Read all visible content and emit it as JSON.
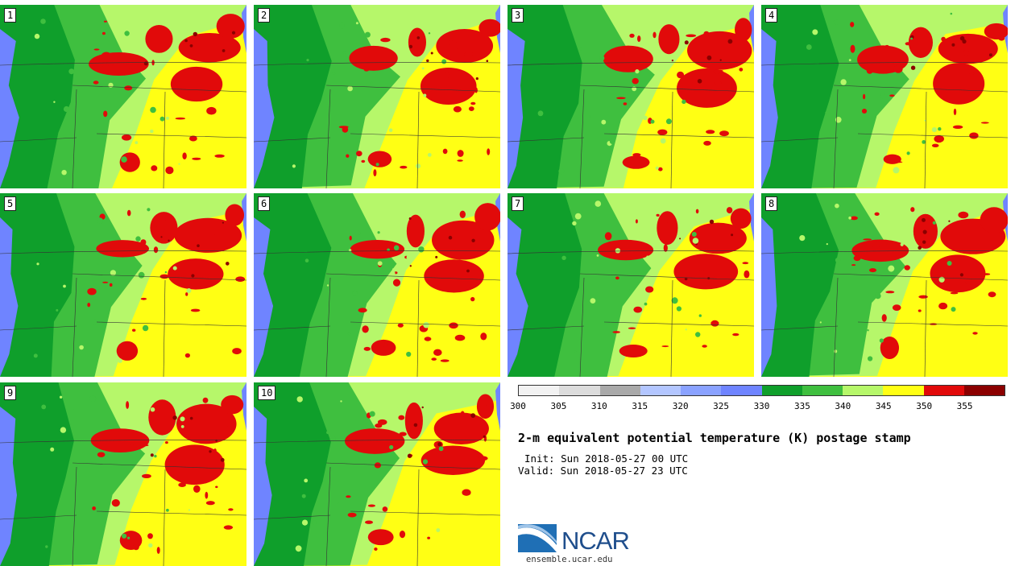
{
  "panels": [
    {
      "label": "1"
    },
    {
      "label": "2"
    },
    {
      "label": "3"
    },
    {
      "label": "4"
    },
    {
      "label": "5"
    },
    {
      "label": "6"
    },
    {
      "label": "7"
    },
    {
      "label": "8"
    },
    {
      "label": "9"
    },
    {
      "label": "10"
    }
  ],
  "colorbar": {
    "colors": [
      "#f2f2f2",
      "#dcdcdc",
      "#a9a9a9",
      "#b3c6ff",
      "#8aa2ff",
      "#6f84ff",
      "#0f9f2b",
      "#3fbf3f",
      "#b6f76a",
      "#ffff14",
      "#e10a0a",
      "#8b0000"
    ],
    "ticks": [
      "300",
      "305",
      "310",
      "315",
      "320",
      "325",
      "330",
      "335",
      "340",
      "345",
      "350",
      "355"
    ]
  },
  "title": "2-m equivalent potential temperature (K) postage stamp",
  "init": "Init: Sun 2018-05-27 00 UTC",
  "valid": "Valid: Sun 2018-05-27 23 UTC",
  "logo": {
    "text": "NCAR",
    "site": "ensemble.ucar.edu"
  },
  "map_colors": {
    "water": "#6f84ff",
    "dark_green": "#0f9f2b",
    "green": "#3fbf3f",
    "light_green": "#b6f76a",
    "yellow": "#ffff14",
    "red": "#e10a0a",
    "dark_red": "#8b0000"
  }
}
